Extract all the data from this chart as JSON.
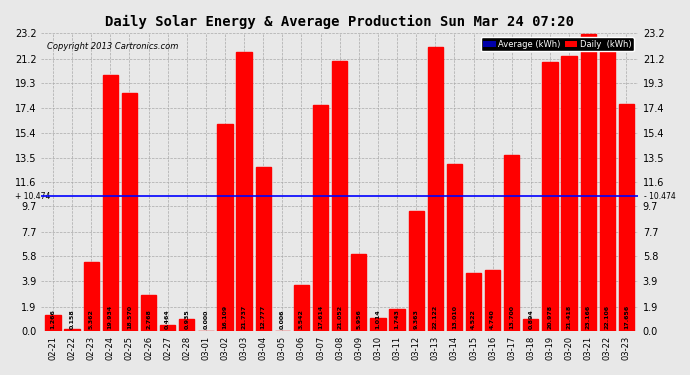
{
  "title": "Daily Solar Energy & Average Production Sun Mar 24 07:20",
  "copyright": "Copyright 2013 Cartronics.com",
  "categories": [
    "02-21",
    "02-22",
    "02-23",
    "02-24",
    "02-25",
    "02-26",
    "02-27",
    "02-28",
    "03-01",
    "03-02",
    "03-03",
    "03-04",
    "03-05",
    "03-06",
    "03-07",
    "03-08",
    "03-09",
    "03-10",
    "03-11",
    "03-12",
    "03-13",
    "03-14",
    "03-15",
    "03-16",
    "03-17",
    "03-18",
    "03-19",
    "03-20",
    "03-21",
    "03-22",
    "03-23"
  ],
  "values": [
    1.266,
    0.158,
    5.362,
    19.934,
    18.57,
    2.768,
    0.464,
    0.935,
    0.0,
    16.109,
    21.737,
    12.777,
    0.006,
    3.542,
    17.614,
    21.052,
    5.956,
    1.014,
    1.743,
    9.363,
    22.122,
    13.01,
    4.522,
    4.74,
    13.7,
    0.894,
    20.978,
    21.418,
    23.166,
    22.106,
    17.656
  ],
  "average": 10.474,
  "ylim": [
    0.0,
    23.2
  ],
  "yticks": [
    0.0,
    1.9,
    3.9,
    5.8,
    7.7,
    9.7,
    11.6,
    13.5,
    15.4,
    17.4,
    19.3,
    21.2,
    23.2
  ],
  "bar_color": "#ff0000",
  "average_line_color": "#0000ff",
  "grid_color": "#aaaaaa",
  "background_color": "#e8e8e8",
  "average_label": "Average (kWh)",
  "daily_label": "Daily  (kWh)",
  "average_label_bg": "#0000aa",
  "daily_label_bg": "#cc0000",
  "label_text_color": "#ffffff",
  "avg_left_text": "10.474",
  "avg_right_text": "10.474"
}
